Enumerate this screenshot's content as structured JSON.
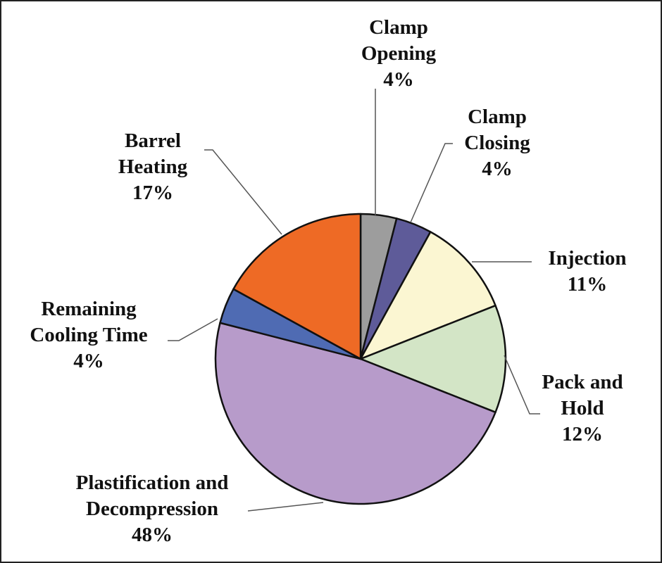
{
  "chart_data": {
    "type": "pie",
    "title": "",
    "start": "12 o'clock, clockwise",
    "slices": [
      {
        "label_lines": [
          "Clamp",
          "Opening"
        ],
        "pct_label": "4%",
        "value": 4,
        "color": "#9d9d9d"
      },
      {
        "label_lines": [
          "Clamp",
          "Closing"
        ],
        "pct_label": "4%",
        "value": 4,
        "color": "#5e5b99"
      },
      {
        "label_lines": [
          "Injection"
        ],
        "pct_label": "11%",
        "value": 11,
        "color": "#fbf6d2"
      },
      {
        "label_lines": [
          "Pack and",
          "Hold"
        ],
        "pct_label": "12%",
        "value": 12,
        "color": "#d3e5c6"
      },
      {
        "label_lines": [
          "Plastification and",
          "Decompression"
        ],
        "pct_label": "48%",
        "value": 48,
        "color": "#b79bca"
      },
      {
        "label_lines": [
          "Remaining",
          "Cooling Time"
        ],
        "pct_label": "4%",
        "value": 4,
        "color": "#4f6bb3"
      },
      {
        "label_lines": [
          "Barrel",
          "Heating"
        ],
        "pct_label": "17%",
        "value": 17,
        "color": "#ee6a25"
      }
    ]
  }
}
